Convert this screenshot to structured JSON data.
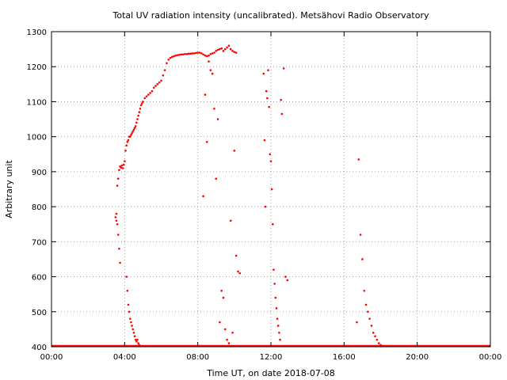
{
  "chart_data": {
    "type": "scatter",
    "title": "Total UV radiation intensity (uncalibrated). Metsähovi Radio Observatory",
    "xlabel": "Time UT, on date 2018-07-08",
    "ylabel": "Arbitrary unit",
    "x_unit": "hours UT",
    "xlim": [
      0,
      24
    ],
    "ylim": [
      400,
      1300
    ],
    "x_ticks": [
      0,
      4,
      8,
      12,
      16,
      20,
      24
    ],
    "x_tick_labels": [
      "00:00",
      "04:00",
      "08:00",
      "12:00",
      "16:00",
      "20:00",
      "00:00"
    ],
    "y_ticks": [
      400,
      500,
      600,
      700,
      800,
      900,
      1000,
      1100,
      1200,
      1300
    ],
    "y_tick_labels": [
      "400",
      "500",
      "600",
      "700",
      "800",
      "900",
      "1000",
      "1100",
      "1200",
      "1300"
    ],
    "grid": true,
    "grid_style": "dotted",
    "point_color": "#ff0000",
    "baseline_y": 400,
    "series": [
      {
        "name": "",
        "color": "#ff0000",
        "x": [
          3.5,
          3.55,
          3.6,
          3.65,
          3.7,
          3.75,
          3.8,
          3.85,
          3.9,
          3.95,
          4.0,
          4.05,
          4.1,
          4.15,
          4.2,
          4.25,
          4.3,
          4.35,
          4.4,
          4.45,
          4.5,
          4.55,
          4.6,
          4.65,
          4.7,
          4.75,
          4.8,
          4.85,
          4.9,
          4.95,
          5.0,
          5.1,
          5.2,
          5.3,
          5.4,
          5.5,
          5.6,
          5.7,
          5.8,
          5.9,
          6.0,
          6.1,
          6.2,
          6.3,
          6.4,
          6.5,
          6.6,
          6.7,
          6.8,
          6.9,
          7.0,
          7.1,
          7.2,
          7.3,
          7.4,
          7.5,
          7.6,
          7.7,
          7.8,
          7.9,
          8.0,
          8.1,
          8.2,
          8.3,
          8.4,
          8.5,
          8.6,
          8.7,
          8.8,
          8.9,
          9.0,
          9.1,
          9.2,
          9.3,
          9.4,
          9.5,
          9.6,
          9.7,
          9.8,
          9.9,
          10.0,
          10.1,
          3.55,
          3.6,
          3.65,
          3.7,
          3.75,
          4.1,
          4.15,
          4.2,
          4.25,
          4.3,
          4.35,
          4.4,
          4.45,
          4.5,
          4.55,
          4.6,
          4.65,
          4.7,
          4.75,
          4.8,
          4.85,
          8.3,
          8.4,
          8.5,
          8.6,
          8.7,
          8.8,
          8.9,
          9.0,
          9.1,
          9.2,
          9.3,
          9.4,
          9.5,
          9.6,
          9.7,
          9.8,
          9.9,
          10.0,
          10.1,
          10.2,
          10.3,
          11.6,
          11.65,
          11.7,
          11.75,
          11.8,
          11.85,
          11.9,
          11.95,
          12.0,
          12.05,
          12.1,
          12.15,
          12.2,
          12.25,
          12.3,
          12.35,
          12.4,
          12.45,
          12.5,
          12.55,
          12.6,
          12.7,
          12.8,
          12.9,
          16.7,
          16.8,
          16.9,
          17.0,
          17.1,
          17.2,
          17.3,
          17.4,
          17.5,
          17.6,
          17.7,
          17.8,
          17.9,
          18.0,
          18.1
        ],
        "y": [
          770,
          760,
          860,
          880,
          905,
          915,
          912,
          918,
          910,
          920,
          930,
          960,
          975,
          985,
          990,
          1000,
          1000,
          1005,
          1010,
          1015,
          1020,
          1025,
          1030,
          1040,
          1050,
          1060,
          1070,
          1080,
          1090,
          1095,
          1100,
          1110,
          1115,
          1120,
          1125,
          1130,
          1140,
          1145,
          1150,
          1155,
          1160,
          1175,
          1190,
          1210,
          1220,
          1225,
          1228,
          1230,
          1232,
          1233,
          1234,
          1235,
          1235,
          1236,
          1236,
          1237,
          1237,
          1238,
          1238,
          1239,
          1240,
          1240,
          1238,
          1235,
          1232,
          1230,
          1232,
          1236,
          1238,
          1240,
          1245,
          1248,
          1250,
          1252,
          1245,
          1250,
          1255,
          1260,
          1250,
          1245,
          1242,
          1240,
          780,
          750,
          720,
          680,
          640,
          600,
          560,
          520,
          500,
          480,
          470,
          460,
          450,
          440,
          430,
          420,
          415,
          420,
          410,
          405,
          402,
          830,
          1120,
          985,
          1215,
          1190,
          1180,
          1080,
          880,
          1050,
          470,
          560,
          540,
          450,
          420,
          410,
          760,
          440,
          960,
          660,
          615,
          610,
          1180,
          990,
          800,
          1130,
          1110,
          1190,
          1085,
          950,
          930,
          850,
          750,
          620,
          580,
          540,
          510,
          480,
          460,
          440,
          420,
          1105,
          1065,
          1195,
          600,
          590,
          470,
          935,
          720,
          650,
          560,
          520,
          500,
          480,
          460,
          440,
          430,
          420,
          410,
          405,
          402
        ]
      }
    ]
  }
}
